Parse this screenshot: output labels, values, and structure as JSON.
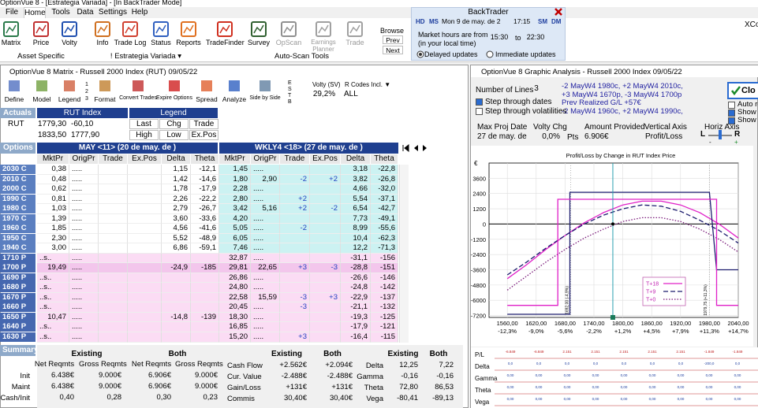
{
  "title_bar": "OptionVue 8 - [Estrategia Variada] - [In BackTrader Mode]",
  "menu": [
    "File",
    "Home",
    "Tools",
    "Data",
    "Settings",
    "Help"
  ],
  "ribbon": {
    "buttons": [
      "Matrix",
      "Price",
      "Volty",
      "Info",
      "Trade Log",
      "Status",
      "Reports",
      "TradeFinder",
      "Survey",
      "OpScan",
      "Earnings Planner",
      "Trade"
    ],
    "groups": [
      "Asset Specific",
      "! Estrategia Variada ▾",
      "Auto-Scan Tools"
    ],
    "browse": {
      "label": "Browse",
      "prev": "Prev",
      "next": "Next"
    }
  },
  "backtrader": {
    "title": "BackTrader",
    "h_d": "HD",
    "m_s": "MS",
    "date": "Mon 9 de may. de 2",
    "time": "17:15",
    "s_m": "SM",
    "d_m": "DM",
    "hours_1": "Market hours are from",
    "hours_2": "(in your local time)",
    "from": "15:30",
    "to": "to",
    "until": "22:30",
    "delayed": "Delayed updates",
    "immediate": "Immediate updates"
  },
  "xco": "XCo",
  "matrix": {
    "title": "OptionVue 8 Matrix - Russell 2000 Index (RUT)  09/05/22",
    "toolbar": [
      "Define",
      "Model",
      "Legend",
      "Format",
      "Convert Trades",
      "Expire Options",
      "Spread",
      "Analyze",
      "Side by Side"
    ],
    "legend_numbers": [
      "1",
      "2",
      "3"
    ],
    "side_letters": [
      "E",
      "S",
      "T",
      "B"
    ],
    "volty_label": "Volty (SV)",
    "volty": "29,2%",
    "rcodes_label": "R Codes Incl. ▼",
    "rcodes": "ALL",
    "actuals": {
      "label": "Actuals",
      "index_header": "RUT Index",
      "legend_header": "Legend",
      "symbol": "RUT",
      "row1": [
        "1779,30",
        "-60,10"
      ],
      "row2": [
        "1833,50",
        "1777,90"
      ],
      "legend1": [
        "Last",
        "Chg",
        "Trade"
      ],
      "legend2": [
        "High",
        "Low",
        "Ex.Pos"
      ]
    },
    "options_label": "Options",
    "months": [
      "MAY <11> (20 de may. de )",
      "WKLY4 <18> (27 de may. de )"
    ],
    "columns": [
      "MktPr",
      "OrigPr",
      "Trade",
      "Ex.Pos",
      "Delta",
      "Theta",
      "MktPr",
      "OrigPr",
      "Trade",
      "Ex.Pos",
      "Delta",
      "Theta"
    ],
    "rows": [
      {
        "label": "2030 C",
        "cells": [
          "0,38",
          ".....",
          null,
          null,
          "1,15",
          "-12,1",
          "1,45",
          ".....",
          null,
          null,
          "3,18",
          "-22,8"
        ]
      },
      {
        "label": "2010 C",
        "cells": [
          "0,48",
          ".....",
          null,
          null,
          "1,42",
          "-14,6",
          "1,80",
          "2,90",
          "-2",
          "+2",
          "3,82",
          "-26,8"
        ]
      },
      {
        "label": "2000 C",
        "cells": [
          "0,62",
          ".....",
          null,
          null,
          "1,78",
          "-17,9",
          "2,28",
          ".....",
          null,
          null,
          "4,66",
          "-32,0"
        ]
      },
      {
        "label": "1990 C",
        "cells": [
          "0,81",
          ".....",
          null,
          null,
          "2,26",
          "-22,2",
          "2,80",
          ".....",
          "+2",
          null,
          "5,54",
          "-37,1"
        ]
      },
      {
        "label": "1980 C",
        "cells": [
          "1,03",
          ".....",
          null,
          null,
          "2,79",
          "-26,7",
          "3,42",
          "5,16",
          "+2",
          "-2",
          "6,54",
          "-42,7"
        ]
      },
      {
        "label": "1970 C",
        "cells": [
          "1,39",
          ".....",
          null,
          null,
          "3,60",
          "-33,6",
          "4,20",
          ".....",
          null,
          null,
          "7,73",
          "-49,1"
        ]
      },
      {
        "label": "1960 C",
        "cells": [
          "1,85",
          ".....",
          null,
          null,
          "4,56",
          "-41,6",
          "5,05",
          ".....",
          "-2",
          null,
          "8,99",
          "-55,6"
        ]
      },
      {
        "label": "1950 C",
        "cells": [
          "2,30",
          ".....",
          null,
          null,
          "5,52",
          "-48,9",
          "6,05",
          ".....",
          null,
          null,
          "10,4",
          "-62,3"
        ]
      },
      {
        "label": "1940 C",
        "cells": [
          "3,00",
          ".....",
          null,
          null,
          "6,86",
          "-59,1",
          "7,46",
          ".....",
          null,
          null,
          "12,2",
          "-71,3"
        ]
      },
      {
        "label": "1710 P",
        "cells": [
          "..s..",
          ".....",
          null,
          null,
          null,
          null,
          "32,87",
          ".....",
          null,
          null,
          "-31,1",
          "-156"
        ]
      },
      {
        "label": "1700 P",
        "cells": [
          "19,49",
          ".....",
          null,
          null,
          "-24,9",
          "-185",
          "29,81",
          "22,65",
          "+3",
          "-3",
          "-28,8",
          "-151"
        ]
      },
      {
        "label": "1690 P",
        "cells": [
          "..s..",
          ".....",
          null,
          null,
          null,
          null,
          "26,86",
          ".....",
          null,
          null,
          "-26,6",
          "-146"
        ]
      },
      {
        "label": "1680 P",
        "cells": [
          "..s..",
          ".....",
          null,
          null,
          null,
          null,
          "24,80",
          ".....",
          null,
          null,
          "-24,8",
          "-142"
        ]
      },
      {
        "label": "1670 P",
        "cells": [
          "..s..",
          ".....",
          null,
          null,
          null,
          null,
          "22,58",
          "15,59",
          "-3",
          "+3",
          "-22,9",
          "-137"
        ]
      },
      {
        "label": "1660 P",
        "cells": [
          "..s..",
          ".....",
          null,
          null,
          null,
          null,
          "20,45",
          ".....",
          "-3",
          null,
          "-21,1",
          "-132"
        ]
      },
      {
        "label": "1650 P",
        "cells": [
          "10,47",
          ".....",
          null,
          null,
          "-14,8",
          "-139",
          "18,30",
          ".....",
          null,
          null,
          "-19,3",
          "-125"
        ]
      },
      {
        "label": "1640 P",
        "cells": [
          "..s..",
          ".....",
          null,
          null,
          null,
          null,
          "16,85",
          ".....",
          null,
          null,
          "-17,9",
          "-121"
        ]
      },
      {
        "label": "1630 P",
        "cells": [
          "..s..",
          ".....",
          null,
          null,
          null,
          null,
          "15,20",
          ".....",
          "+3",
          null,
          "-16,4",
          "-115"
        ]
      }
    ],
    "summary": {
      "label": "Summary",
      "req_groups": [
        "Existing",
        "Both"
      ],
      "req_cols": [
        "Net Reqmts",
        "Gross Reqmts",
        "Net Reqmts",
        "Gross Reqmts"
      ],
      "req_rows": [
        {
          "label": "Init",
          "cells": [
            "6.438€",
            "9.000€",
            "6.906€",
            "9.000€"
          ]
        },
        {
          "label": "Maint",
          "cells": [
            "6.438€",
            "9.000€",
            "6.906€",
            "9.000€"
          ]
        },
        {
          "label": "Cash/Init",
          "cells": [
            "0,40",
            "0,28",
            "0,30",
            "0,23"
          ]
        }
      ],
      "mid_groups": [
        "Existing",
        "Both"
      ],
      "mid_rows": [
        {
          "label": "Cash Flow",
          "cells": [
            "+2.562€",
            "+2.094€"
          ]
        },
        {
          "label": "Cur. Value",
          "cells": [
            "-2.488€",
            "-2.488€"
          ]
        },
        {
          "label": "Gain/Loss",
          "cells": [
            "+131€",
            "+131€"
          ]
        },
        {
          "label": "Commis",
          "cells": [
            "30,40€",
            "30,40€"
          ]
        }
      ],
      "greek_groups": [
        "Existing",
        "Both"
      ],
      "greek_rows": [
        {
          "label": "Delta",
          "cells": [
            "12,25",
            "7,22"
          ]
        },
        {
          "label": "Gamma",
          "cells": [
            "-0,16",
            "-0,16"
          ]
        },
        {
          "label": "Theta",
          "cells": [
            "72,80",
            "86,53"
          ]
        },
        {
          "label": "Vega",
          "cells": [
            "-80,41",
            "-89,13"
          ]
        }
      ]
    }
  },
  "graph": {
    "title": "OptionVue 8 Graphic Analysis - Russell 2000 Index  09/05/22",
    "lines_label": "Number of Lines",
    "lines": "3",
    "positions": [
      "-2 MayW4 1980c, +2 MayW4 2010c,",
      "+3 MayW4 1670p, -3 MayW4 1700p",
      "Prev Realized G/L +57€",
      "-2 MayW4 1960c, +2 MayW4 1990c,"
    ],
    "step_dates": {
      "label": "Step through dates",
      "checked": true
    },
    "step_vols": {
      "label": "Step through volatilities",
      "checked": false
    },
    "close": "Clo",
    "side_checks": [
      {
        "label": "Auto re",
        "checked": false
      },
      {
        "label": "Show E",
        "checked": true
      },
      {
        "label": "Show C",
        "checked": true
      }
    ],
    "max_proj_label": "Max Proj Date",
    "max_proj": "27 de may. de",
    "volty_chg_label": "Volty Chg",
    "volty_chg": "0,0%",
    "pts": "Pts",
    "amount_label": "Amount Provided",
    "amount": "6.906€",
    "vaxis_label": "Vertical Axis",
    "vaxis": "Profit/Loss",
    "haxis_label": "Horiz Axis",
    "l": "L",
    "r": "R",
    "minus": "-",
    "plus": "+",
    "chart": {
      "type": "line",
      "title": "Profit/Loss by Change in RUT Index Price",
      "currency": "€",
      "xlim": [
        1522,
        2040
      ],
      "ylim": [
        -7350,
        4800
      ],
      "xticks": [
        {
          "value": 1560,
          "label": "1560,00"
        },
        {
          "value": 1620,
          "label": "1620,00"
        },
        {
          "value": 1680,
          "label": "1680,00"
        },
        {
          "value": 1740,
          "label": "1740,00"
        },
        {
          "value": 1800,
          "label": "1800,00"
        },
        {
          "value": 1860,
          "label": "1860,00"
        },
        {
          "value": 1920,
          "label": "1920,00"
        },
        {
          "value": 1980,
          "label": "1980,00"
        },
        {
          "value": 2040,
          "label": "2040,00"
        }
      ],
      "xtick_pct": [
        "-12,3%",
        "-9,0%",
        "-5,6%",
        "-2,2%",
        "+1,2%",
        "+4,5%",
        "+7,9%",
        "+11,3%",
        "+14,7%"
      ],
      "yticks": [
        3600,
        2400,
        1200,
        0,
        -1200,
        -2400,
        -3600,
        -4800,
        -6000,
        -7200
      ],
      "current_price": 1779.3,
      "annotations": [
        {
          "x": 1692,
          "label": "1692,00 (-4,9%)"
        },
        {
          "x": 1979.75,
          "label": "1979,75 (+11,3%)"
        }
      ],
      "series": [
        {
          "name": "T+18",
          "color": "#e020c8",
          "dash": "solid",
          "x": [
            1560,
            1600,
            1640,
            1680,
            1720,
            1760,
            1800,
            1840,
            1880,
            1920,
            1960,
            2000,
            2040
          ],
          "values": [
            -4300,
            -3200,
            -2000,
            -900,
            100,
            900,
            1500,
            1800,
            1800,
            1500,
            900,
            0,
            -1100
          ]
        },
        {
          "name": "T+9",
          "color": "#1c1c6e",
          "dash": "dashed",
          "x": [
            1560,
            1600,
            1640,
            1680,
            1720,
            1760,
            1800,
            1840,
            1880,
            1920,
            1960,
            2000,
            2040
          ],
          "values": [
            -4000,
            -3000,
            -1900,
            -900,
            0,
            700,
            1200,
            1500,
            1400,
            1000,
            300,
            -500,
            -1500
          ]
        },
        {
          "name": "T+0",
          "color": "#7a1a7a",
          "dash": "dotted",
          "x": [
            1560,
            1600,
            1640,
            1680,
            1720,
            1760,
            1800,
            1840,
            1880,
            1920,
            1960,
            2000,
            2040
          ],
          "values": [
            -5200,
            -4100,
            -3000,
            -2000,
            -1100,
            -400,
            200,
            500,
            500,
            200,
            -400,
            -1200,
            -2200
          ]
        },
        {
          "color": "#1c1c6e",
          "dash": "solid",
          "x": [
            1560,
            1690,
            1690,
            1980,
            1995,
            2040
          ],
          "values": [
            -7100,
            -7100,
            2500,
            2500,
            -3600,
            -3600
          ]
        },
        {
          "color": "#e020c8",
          "dash": "solid",
          "x": [
            1560,
            1665,
            1665,
            1995,
            1995,
            2040
          ],
          "values": [
            -6400,
            -6400,
            1950,
            1950,
            -6400,
            -6400
          ]
        }
      ]
    },
    "bottom": {
      "rows": [
        {
          "label": "P/L",
          "cells": [
            "-6.849",
            "-6.849",
            "2.151",
            "2.151",
            "2.151",
            "2.151",
            "2.151",
            "-1.849",
            "-1.849"
          ]
        },
        {
          "label": "Delta",
          "cells": [
            "0,0",
            "0,0",
            "0,0",
            "0,0",
            "0,0",
            "0,0",
            "0,0",
            "-200,0",
            "0,0"
          ]
        },
        {
          "label": "Gamma",
          "cells": [
            "0,00",
            "0,00",
            "0,00",
            "0,00",
            "0,00",
            "0,00",
            "0,00",
            "0,00",
            "0,00"
          ]
        },
        {
          "label": "Theta",
          "cells": [
            "0,00",
            "0,00",
            "0,00",
            "0,00",
            "0,00",
            "0,00",
            "0,00",
            "0,00",
            "0,00"
          ]
        },
        {
          "label": "Vega",
          "cells": [
            "0,00",
            "0,00",
            "0,00",
            "0,00",
            "0,00",
            "0,00",
            "0,00",
            "0,00",
            "0,00"
          ]
        }
      ]
    }
  }
}
